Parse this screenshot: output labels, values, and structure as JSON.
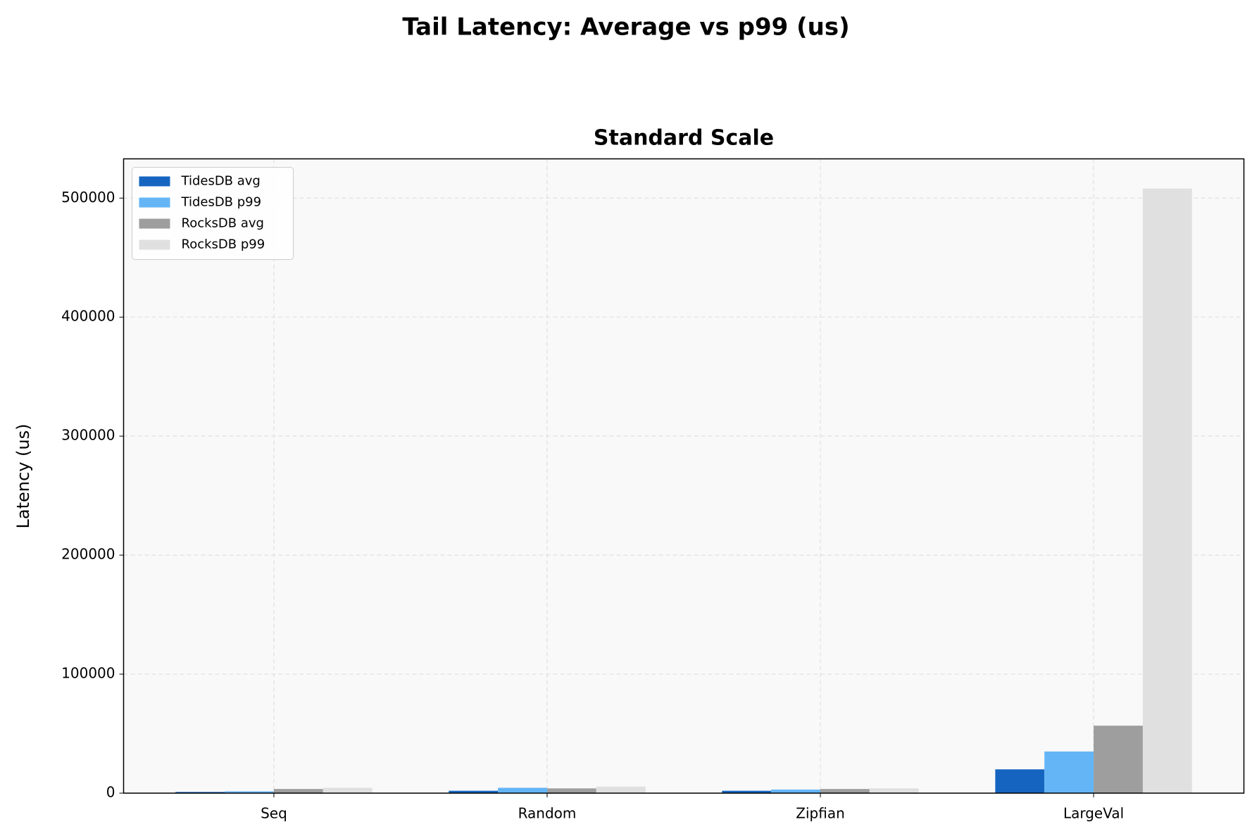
{
  "chart_data": {
    "type": "bar",
    "title": "Tail Latency: Average vs p99 (us)",
    "subtitle": "Standard Scale",
    "y_label": "Latency (us)",
    "categories": [
      "Seq",
      "Random",
      "Zipfian",
      "LargeVal"
    ],
    "series": [
      {
        "name": "TidesDB avg",
        "color": "#1565c0",
        "values": [
          1000,
          2000,
          2000,
          20000
        ]
      },
      {
        "name": "TidesDB p99",
        "color": "#64b5f6",
        "values": [
          1500,
          4500,
          3000,
          35000
        ]
      },
      {
        "name": "RocksDB avg",
        "color": "#9e9e9e",
        "values": [
          3500,
          4000,
          3500,
          56700
        ]
      },
      {
        "name": "RocksDB p99",
        "color": "#e0e0e0",
        "values": [
          4500,
          5500,
          4000,
          508000
        ]
      }
    ],
    "ylim": [
      0,
      533000
    ],
    "yticks": [
      0,
      100000,
      200000,
      300000,
      400000,
      500000
    ],
    "grid": true,
    "legend": "upper left"
  }
}
